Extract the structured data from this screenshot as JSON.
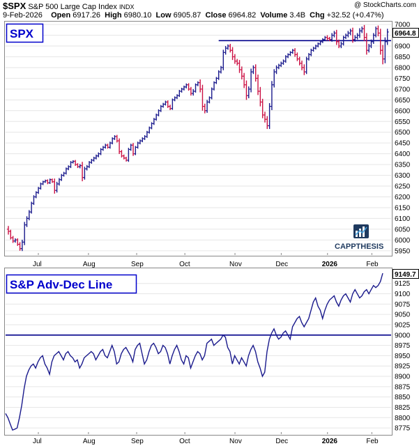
{
  "header": {
    "symbol": "$SPX",
    "name": "S&P 500 Large Cap Index",
    "exchange": "INDX",
    "copyright": "@ StockCharts.com",
    "date": "9-Feb-2026",
    "open_label": "Open",
    "open_value": "6917.26",
    "high_label": "High",
    "high_value": "6980.10",
    "low_label": "Low",
    "low_value": "6905.87",
    "close_label": "Close",
    "close_value": "6964.82",
    "volume_label": "Volume",
    "volume_value": "3.4B",
    "chg_label": "Chg",
    "chg_value": "+32.52 (+0.47%)"
  },
  "logo": {
    "text": "CAPPTHESIS",
    "icon": "capp-thesis-logo-icon"
  },
  "colors": {
    "up": "#1a1a8c",
    "down": "#cc1144",
    "line": "#1a1a8c",
    "hline": "#00008b",
    "title": "#0000cc"
  },
  "chart_data": [
    {
      "type": "ohlc",
      "title": "SPX",
      "last_value_label": "6964.8",
      "ylim": [
        5930,
        7010
      ],
      "yticks": [
        5950,
        6000,
        6050,
        6100,
        6150,
        6200,
        6250,
        6300,
        6350,
        6400,
        6450,
        6500,
        6550,
        6600,
        6650,
        6700,
        6750,
        6800,
        6850,
        6900,
        6950,
        7000
      ],
      "x_axis_labels": [
        "Jul",
        "Aug",
        "Sep",
        "Oct",
        "Nov",
        "Dec",
        "2026",
        "Feb"
      ],
      "horizontal_line": 6925,
      "closes": [
        6040,
        6010,
        5995,
        6000,
        5980,
        5960,
        5990,
        6070,
        6100,
        6130,
        6170,
        6200,
        6220,
        6240,
        6260,
        6270,
        6275,
        6265,
        6280,
        6270,
        6230,
        6260,
        6280,
        6300,
        6310,
        6330,
        6340,
        6360,
        6365,
        6350,
        6340,
        6345,
        6290,
        6330,
        6340,
        6360,
        6370,
        6380,
        6390,
        6400,
        6420,
        6430,
        6440,
        6430,
        6450,
        6470,
        6480,
        6460,
        6410,
        6390,
        6380,
        6370,
        6420,
        6440,
        6400,
        6430,
        6450,
        6460,
        6470,
        6480,
        6500,
        6520,
        6540,
        6560,
        6580,
        6600,
        6620,
        6630,
        6640,
        6620,
        6610,
        6650,
        6660,
        6670,
        6690,
        6700,
        6710,
        6720,
        6700,
        6680,
        6690,
        6720,
        6730,
        6700,
        6620,
        6600,
        6640,
        6660,
        6700,
        6730,
        6750,
        6780,
        6800,
        6870,
        6890,
        6900,
        6880,
        6850,
        6830,
        6820,
        6790,
        6760,
        6720,
        6670,
        6700,
        6780,
        6800,
        6750,
        6690,
        6640,
        6580,
        6560,
        6530,
        6620,
        6720,
        6780,
        6800,
        6810,
        6820,
        6830,
        6850,
        6860,
        6870,
        6880,
        6860,
        6840,
        6820,
        6800,
        6780,
        6840,
        6860,
        6880,
        6890,
        6900,
        6910,
        6920,
        6930,
        6940,
        6935,
        6930,
        6950,
        6960,
        6920,
        6900,
        6910,
        6940,
        6950,
        6960,
        6970,
        6930,
        6940,
        6950,
        6970,
        6980,
        6940,
        6880,
        6900,
        6920,
        6950,
        6980,
        6960,
        6880,
        6840,
        6920,
        6965
      ],
      "daily_ranges": [
        60,
        30,
        35,
        30,
        30,
        40,
        45,
        55,
        40,
        35,
        30,
        30,
        25,
        25,
        25,
        20,
        20,
        25,
        20,
        20,
        60,
        40,
        30,
        25,
        25,
        25,
        25,
        25,
        20,
        25,
        25,
        30,
        70,
        40,
        30,
        25,
        25,
        25,
        25,
        25,
        25,
        25,
        25,
        25,
        25,
        25,
        25,
        30,
        45,
        30,
        25,
        25,
        30,
        25,
        40,
        25,
        25,
        25,
        25,
        25,
        25,
        25,
        25,
        25,
        25,
        25,
        25,
        25,
        25,
        30,
        30,
        25,
        25,
        25,
        25,
        25,
        25,
        25,
        30,
        40,
        40,
        25,
        25,
        60,
        80,
        50,
        40,
        25,
        30,
        25,
        25,
        30,
        30,
        50,
        40,
        30,
        40,
        60,
        50,
        40,
        60,
        60,
        60,
        80,
        50,
        60,
        40,
        60,
        70,
        80,
        60,
        60,
        60,
        60,
        70,
        50,
        40,
        30,
        30,
        30,
        30,
        25,
        25,
        25,
        40,
        40,
        40,
        50,
        60,
        40,
        30,
        30,
        25,
        25,
        25,
        25,
        25,
        25,
        40,
        30,
        40,
        40,
        60,
        40,
        40,
        30,
        30,
        40,
        40,
        60,
        40,
        40,
        50,
        40,
        70,
        80,
        40,
        40,
        40,
        40,
        60,
        80,
        100,
        80,
        60
      ]
    },
    {
      "type": "line",
      "title": "S&P Adv-Dec Line",
      "last_value_label": "9149.7",
      "ylim": [
        8760,
        9160
      ],
      "yticks": [
        8775,
        8800,
        8825,
        8850,
        8875,
        8900,
        8925,
        8950,
        8975,
        9000,
        9025,
        9050,
        9075,
        9100,
        9125
      ],
      "x_axis_labels": [
        "Jul",
        "Aug",
        "Sep",
        "Oct",
        "Nov",
        "Dec",
        "2026",
        "Feb"
      ],
      "horizontal_line": 9000,
      "values": [
        8810,
        8800,
        8785,
        8770,
        8772,
        8775,
        8800,
        8830,
        8870,
        8900,
        8915,
        8925,
        8930,
        8920,
        8935,
        8945,
        8950,
        8930,
        8920,
        8905,
        8935,
        8950,
        8955,
        8960,
        8950,
        8940,
        8955,
        8960,
        8950,
        8945,
        8935,
        8940,
        8920,
        8930,
        8945,
        8950,
        8955,
        8960,
        8955,
        8940,
        8950,
        8960,
        8965,
        8950,
        8945,
        8960,
        8975,
        8960,
        8930,
        8935,
        8955,
        8965,
        8970,
        8960,
        8950,
        8935,
        8965,
        8975,
        8980,
        8955,
        8930,
        8940,
        8960,
        8975,
        8980,
        8970,
        8955,
        8960,
        8975,
        8970,
        8955,
        8930,
        8950,
        8965,
        8975,
        8960,
        8940,
        8930,
        8950,
        8945,
        8920,
        8935,
        8950,
        8960,
        8955,
        8940,
        8950,
        8980,
        8985,
        8990,
        8975,
        8980,
        8985,
        8990,
        9000,
        8995,
        8970,
        8960,
        8930,
        8950,
        8940,
        8930,
        8945,
        8935,
        8925,
        8950,
        8965,
        8975,
        8960,
        8935,
        8920,
        8900,
        8910,
        8960,
        8990,
        9005,
        9015,
        9000,
        8990,
        8995,
        9005,
        9010,
        9000,
        8990,
        9020,
        9030,
        9040,
        9045,
        9030,
        9020,
        9030,
        9040,
        9060,
        9080,
        9090,
        9070,
        9060,
        9040,
        9060,
        9075,
        9085,
        9090,
        9095,
        9080,
        9070,
        9085,
        9095,
        9100,
        9090,
        9080,
        9100,
        9110,
        9100,
        9090,
        9095,
        9105,
        9110,
        9100,
        9110,
        9120,
        9115,
        9120,
        9130,
        9149.7
      ]
    }
  ]
}
